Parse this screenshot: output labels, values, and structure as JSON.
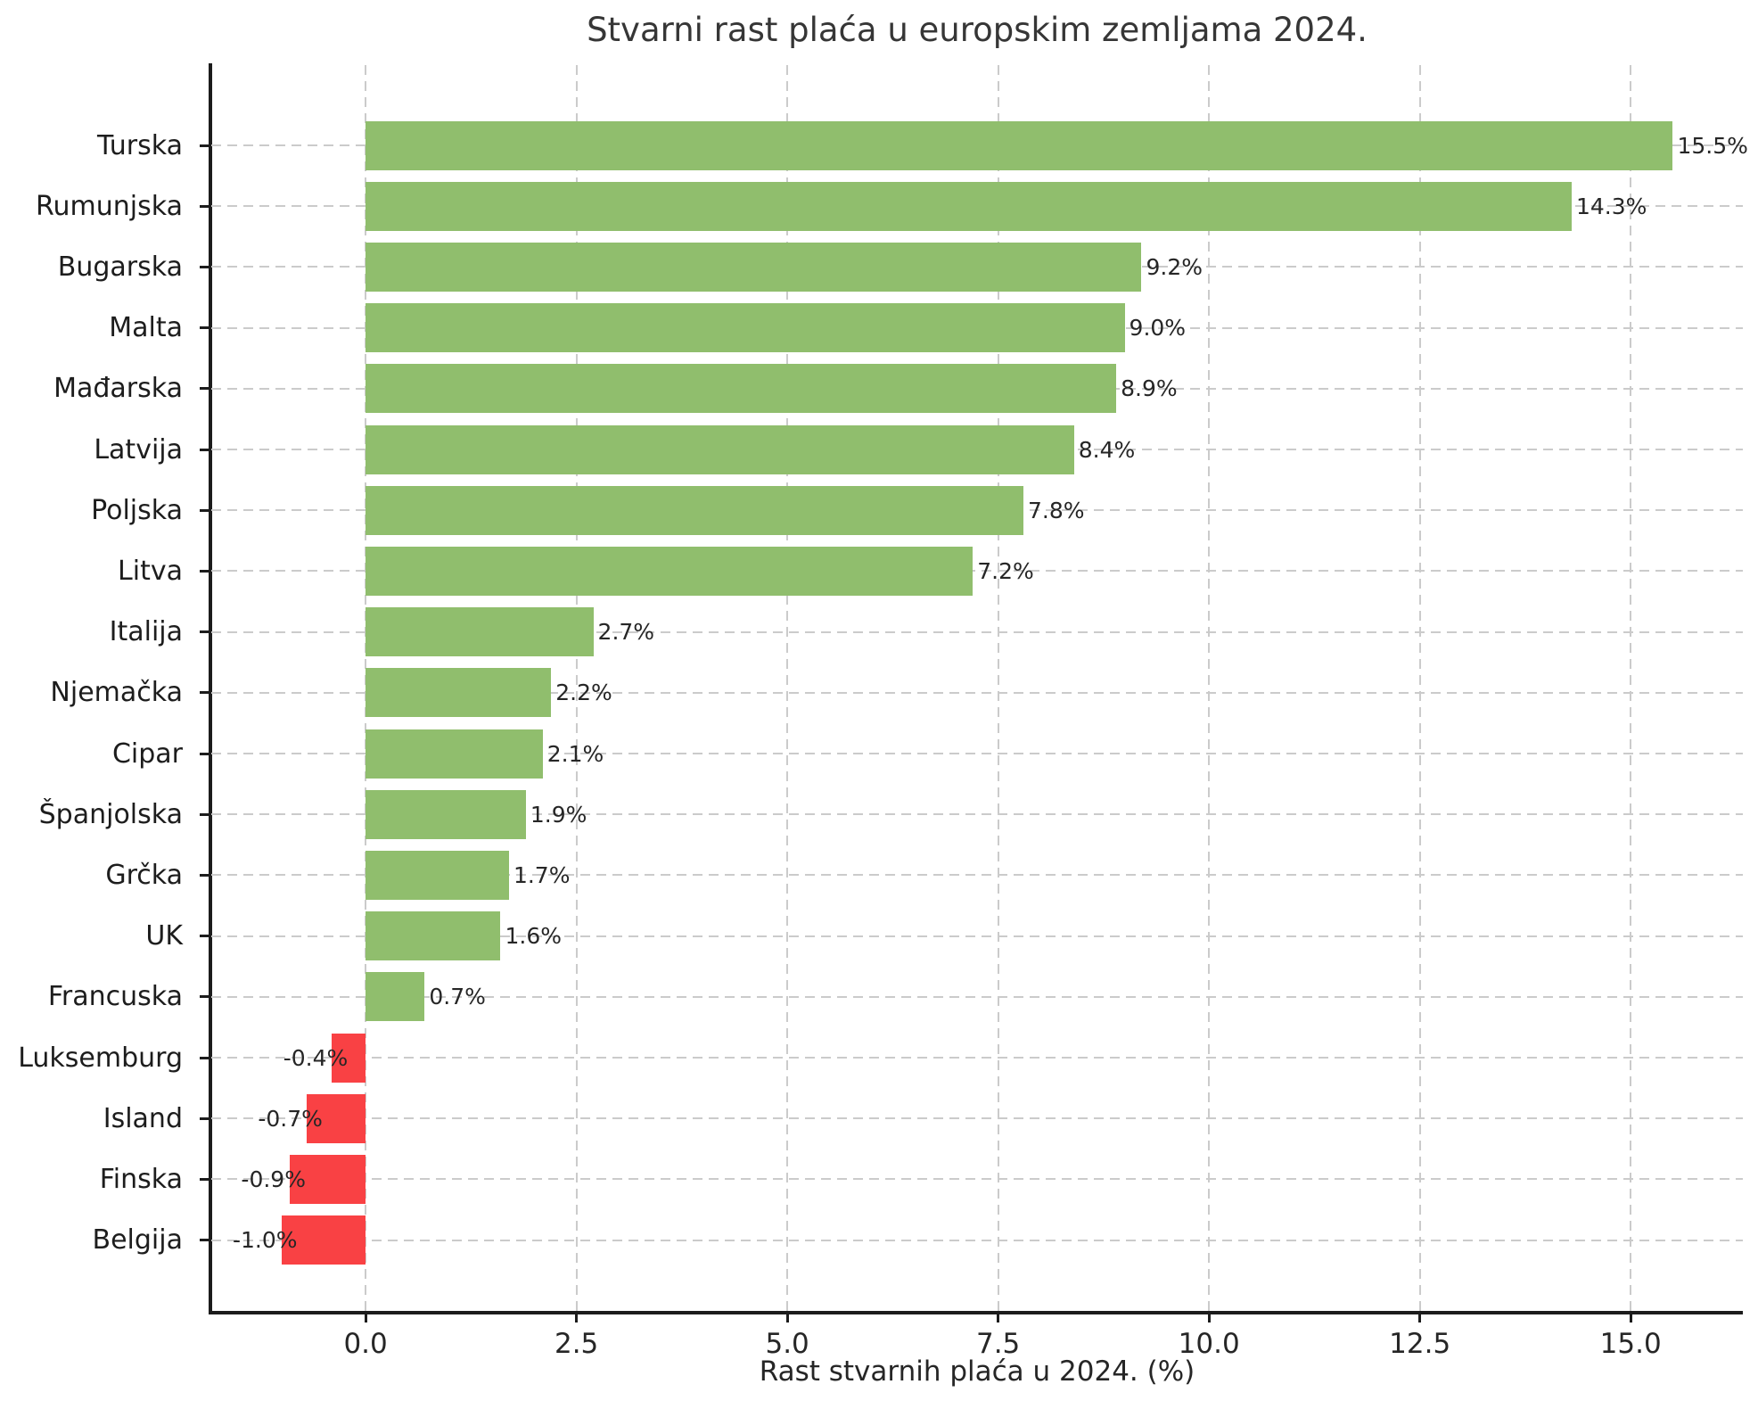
{
  "chart_data": {
    "type": "bar",
    "orientation": "horizontal",
    "title": "Stvarni rast plaća u europskim zemljama 2024.",
    "xlabel": "Rast stvarnih plaća u 2024. (%)",
    "categories": [
      "Turska",
      "Rumunjska",
      "Bugarska",
      "Malta",
      "Mađarska",
      "Latvija",
      "Poljska",
      "Litva",
      "Italija",
      "Njemačka",
      "Cipar",
      "Španjolska",
      "Grčka",
      "UK",
      "Francuska",
      "Luksemburg",
      "Island",
      "Finska",
      "Belgija"
    ],
    "values": [
      15.5,
      14.3,
      9.2,
      9.0,
      8.9,
      8.4,
      7.8,
      7.2,
      2.7,
      2.2,
      2.1,
      1.9,
      1.7,
      1.6,
      0.7,
      -0.4,
      -0.7,
      -0.9,
      -1.0
    ],
    "bar_labels": [
      "15.5%",
      "14.3%",
      "9.2%",
      "9.0%",
      "8.9%",
      "8.4%",
      "7.8%",
      "7.2%",
      "2.7%",
      "2.2%",
      "2.1%",
      "1.9%",
      "1.7%",
      "1.6%",
      "0.7%",
      "-0.4%",
      "-0.7%",
      "-0.9%",
      "-1.0%"
    ],
    "xticks": [
      0.0,
      2.5,
      5.0,
      7.5,
      10.0,
      12.5,
      15.0
    ],
    "xtick_labels": [
      "0.0",
      "2.5",
      "5.0",
      "7.5",
      "10.0",
      "12.5",
      "15.0"
    ],
    "xlim": [
      -1.83,
      16.33
    ],
    "grid": true,
    "legend": null,
    "positive_color": "#90be6d",
    "negative_color": "#f94144",
    "grid_color": "#cbcbcb",
    "axis_color": "#1c1c1c",
    "text_color": "#262626"
  }
}
